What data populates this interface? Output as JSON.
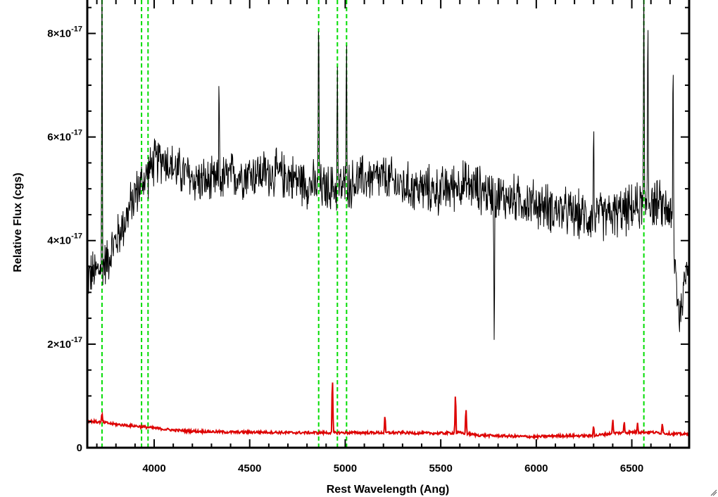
{
  "chart_data": {
    "type": "line",
    "xlabel": "Rest Wavelength (Ang)",
    "ylabel": "Relative Flux (cgs)",
    "xlim": [
      3650,
      6800
    ],
    "ylim": [
      -0.0,
      8.7e-17
    ],
    "grid": false,
    "legend": "none",
    "x_ticks": [
      4000,
      4500,
      5000,
      5500,
      6000,
      6500
    ],
    "x_tick_labels": [
      "4000",
      "4500",
      "5000",
      "5500",
      "6000",
      "6500"
    ],
    "y_ticks": [
      0,
      2e-17,
      4e-17,
      6e-17,
      8e-17
    ],
    "y_tick_labels": [
      {
        "base": "0",
        "exp": ""
      },
      {
        "base": "2×10",
        "exp": "-17"
      },
      {
        "base": "4×10",
        "exp": "-17"
      },
      {
        "base": "6×10",
        "exp": "-17"
      },
      {
        "base": "8×10",
        "exp": "-17"
      }
    ],
    "line_markers": {
      "color": "#00dd00",
      "style": "dashed",
      "x": [
        3727,
        3934,
        3968,
        4861,
        4959,
        5007,
        6563
      ]
    },
    "series": [
      {
        "color": "#000000",
        "style": "noisy-solid",
        "x": [
          3650,
          3700,
          3750,
          3800,
          3850,
          3900,
          3950,
          4000,
          4050,
          4100,
          4200,
          4300,
          4400,
          4500,
          4600,
          4700,
          4800,
          4900,
          5000,
          5100,
          5200,
          5300,
          5400,
          5500,
          5600,
          5700,
          5800,
          5900,
          6000,
          6100,
          6200,
          6300,
          6400,
          6500,
          6600,
          6700,
          6750,
          6800
        ],
        "y": [
          3.3e-17,
          3.4e-17,
          3.6e-17,
          4e-17,
          4.4e-17,
          4.9e-17,
          5.2e-17,
          5.5e-17,
          5.6e-17,
          5.4e-17,
          5.2e-17,
          5.1e-17,
          5.25e-17,
          5.3e-17,
          5.3e-17,
          5.25e-17,
          5.1e-17,
          5e-17,
          5.05e-17,
          5.2e-17,
          5.2e-17,
          5.05e-17,
          5e-17,
          4.95e-17,
          5.1e-17,
          5e-17,
          4.85e-17,
          4.8e-17,
          4.7e-17,
          4.6e-17,
          4.5e-17,
          4.45e-17,
          4.5e-17,
          4.6e-17,
          4.75e-17,
          4.6e-17,
          2.5e-17,
          3.8e-17
        ],
        "spikes": [
          {
            "x": 3727,
            "y": 9e-17
          },
          {
            "x": 4340,
            "y": 7.3e-17
          },
          {
            "x": 4861,
            "y": 9e-17
          },
          {
            "x": 4959,
            "y": 7.3e-17
          },
          {
            "x": 5007,
            "y": 8.3e-17
          },
          {
            "x": 5780,
            "y": 2.1e-17
          },
          {
            "x": 6300,
            "y": 6.3e-17
          },
          {
            "x": 6563,
            "y": 9e-17
          },
          {
            "x": 6584,
            "y": 9e-17
          },
          {
            "x": 6716,
            "y": 8.1e-17
          }
        ]
      },
      {
        "color": "#dd0000",
        "style": "solid",
        "x": [
          3650,
          3700,
          3750,
          3800,
          3900,
          4000,
          4100,
          4200,
          4300,
          4400,
          4500,
          4600,
          4700,
          4800,
          4900,
          5000,
          5100,
          5200,
          5300,
          5400,
          5500,
          5600,
          5700,
          5800,
          5900,
          6000,
          6100,
          6200,
          6300,
          6400,
          6500,
          6600,
          6700,
          6800
        ],
        "y": [
          5.2e-18,
          5e-18,
          4.8e-18,
          4.5e-18,
          4.2e-18,
          3.8e-18,
          3.4e-18,
          3.2e-18,
          3.1e-18,
          3e-18,
          3e-18,
          3e-18,
          2.9e-18,
          2.9e-18,
          2.9e-18,
          2.9e-18,
          2.9e-18,
          2.9e-18,
          2.9e-18,
          2.8e-18,
          2.8e-18,
          2.9e-18,
          2.4e-18,
          2.3e-18,
          2.2e-18,
          2.1e-18,
          2.3e-18,
          2.3e-18,
          2.3e-18,
          2.8e-18,
          3e-18,
          3e-18,
          2.7e-18,
          2.6e-18
        ],
        "spikes": [
          {
            "x": 3727,
            "y": 6.8e-18
          },
          {
            "x": 4933,
            "y": 1.5e-17
          },
          {
            "x": 5208,
            "y": 6.4e-18
          },
          {
            "x": 5577,
            "y": 1.15e-17
          },
          {
            "x": 5632,
            "y": 8.3e-18
          },
          {
            "x": 6300,
            "y": 4.8e-18
          },
          {
            "x": 6400,
            "y": 5.8e-18
          },
          {
            "x": 6460,
            "y": 5.4e-18
          },
          {
            "x": 6530,
            "y": 5e-18
          },
          {
            "x": 6660,
            "y": 5.2e-18
          }
        ]
      }
    ]
  }
}
